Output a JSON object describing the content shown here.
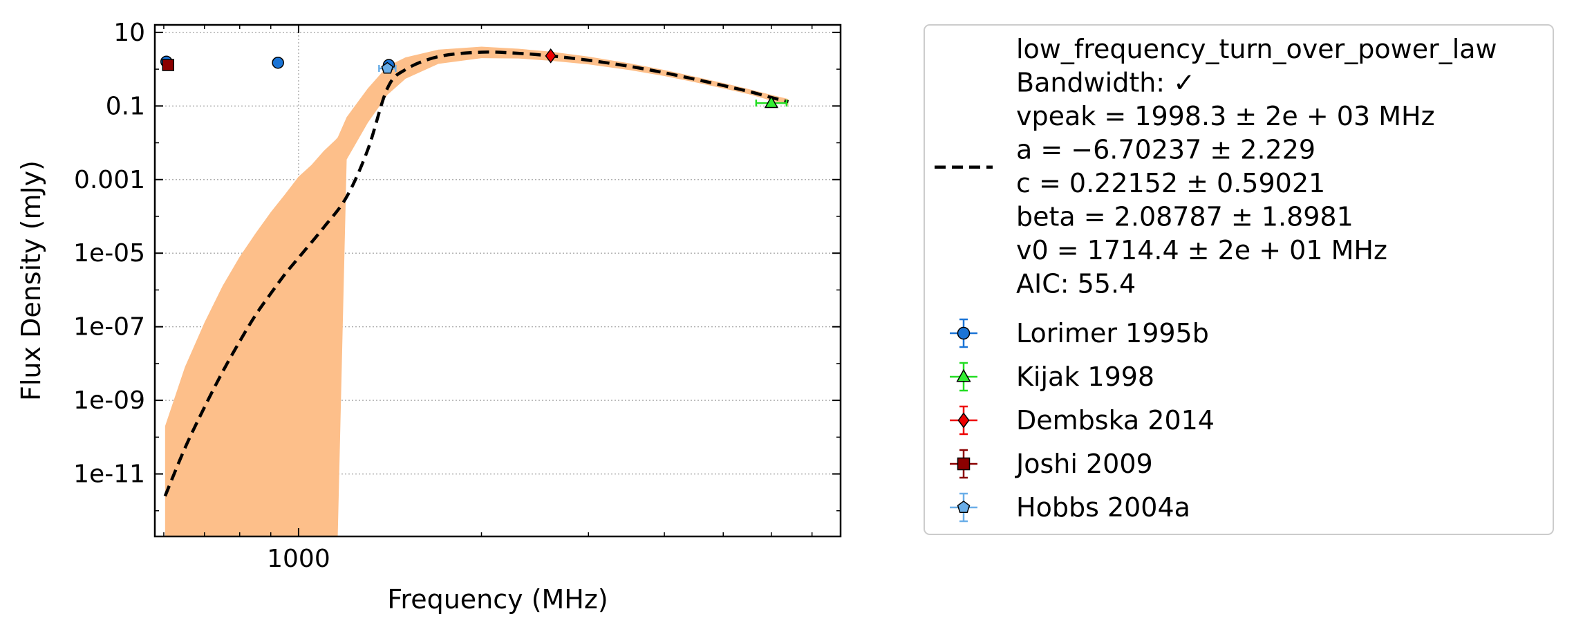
{
  "chart_data": {
    "type": "scatter",
    "xlabel": "Frequency (MHz)",
    "ylabel": "Flux Density (mJy)",
    "x_scale": "log",
    "y_scale": "log",
    "xlim": [
      580,
      7800
    ],
    "ylim": [
      2e-13,
      16
    ],
    "x_ticks": [
      {
        "value": 1000,
        "label": "1000"
      }
    ],
    "y_ticks": [
      {
        "value": 10,
        "label": "10"
      },
      {
        "value": 0.1,
        "label": "0.1"
      },
      {
        "value": 0.001,
        "label": "0.001"
      },
      {
        "value": 1e-05,
        "label": "1e-05"
      },
      {
        "value": 1e-07,
        "label": "1e-07"
      },
      {
        "value": 1e-09,
        "label": "1e-09"
      },
      {
        "value": 1e-11,
        "label": "1e-11"
      }
    ],
    "grid": true,
    "legend_position": "outside-right",
    "fit": {
      "model": "low_frequency_turn_over_power_law",
      "x": [
        603,
        650,
        700,
        750,
        800,
        850,
        900,
        950,
        1000,
        1100,
        1200,
        1300,
        1400,
        1500,
        1700,
        2000,
        2300,
        2600,
        3000,
        3500,
        4000,
        4500,
        5000,
        5500,
        6000,
        6400
      ],
      "y": [
        2.5e-12,
        5e-11,
        6.5e-10,
        6e-09,
        4e-08,
        2.1e-07,
        8e-07,
        2.7e-06,
        7.5e-06,
        5e-05,
        0.00034,
        0.0065,
        0.3,
        0.98,
        2.2,
        2.9,
        2.7,
        2.3,
        1.75,
        1.2,
        0.8,
        0.53,
        0.36,
        0.25,
        0.17,
        0.13
      ],
      "band_x": [
        603,
        650,
        700,
        750,
        800,
        850,
        900,
        950,
        1000,
        1050,
        1100,
        1150,
        1160,
        1200,
        1300,
        1400,
        1500,
        1700,
        2000,
        2300,
        2600,
        3000,
        3500,
        4000,
        4500,
        5000,
        5500,
        6000,
        6400
      ],
      "band_upper": [
        2e-10,
        8e-09,
        1.3e-07,
        1.3e-06,
        8e-06,
        3.5e-05,
        0.00013,
        0.0004,
        0.0012,
        0.0025,
        0.006,
        0.012,
        0.014,
        0.05,
        0.3,
        1.2,
        2.1,
        3.4,
        4.1,
        3.6,
        3.0,
        2.2,
        1.45,
        0.95,
        0.62,
        0.42,
        0.29,
        0.2,
        0.155
      ],
      "band_lower": [
        2e-13,
        2e-13,
        2e-13,
        2e-13,
        2e-13,
        2e-13,
        2e-13,
        2e-13,
        2e-13,
        2e-13,
        2e-13,
        2e-13,
        2e-13,
        0.0035,
        0.035,
        0.2,
        0.55,
        1.4,
        2.0,
        1.95,
        1.7,
        1.35,
        0.95,
        0.65,
        0.44,
        0.3,
        0.21,
        0.14,
        0.105
      ],
      "color": "#000000",
      "band_color": "#fdbf8a"
    },
    "series": [
      {
        "name": "Lorimer 1995b",
        "marker": "circle",
        "color": "#1a74d6",
        "error_color": "#1a74d6",
        "points": [
          {
            "x": 606,
            "y": 1.6
          },
          {
            "x": 925,
            "y": 1.5
          },
          {
            "x": 1408,
            "y": 1.3
          }
        ]
      },
      {
        "name": "Kijak 1998",
        "marker": "triangle",
        "color": "#33ee33",
        "error_color": "#22dd22",
        "points": [
          {
            "x": 6000,
            "y": 0.12
          }
        ]
      },
      {
        "name": "Dembska 2014",
        "marker": "diamond",
        "color": "#ee0000",
        "error_color": "#ee0000",
        "points": [
          {
            "x": 2600,
            "y": 2.3
          }
        ]
      },
      {
        "name": "Joshi 2009",
        "marker": "square",
        "color": "#8b0000",
        "error_color": "#8b0000",
        "points": [
          {
            "x": 610,
            "y": 1.3
          }
        ]
      },
      {
        "name": "Hobbs 2004a",
        "marker": "pentagon",
        "color": "#6aaee8",
        "error_color": "#6aaee8",
        "points": [
          {
            "x": 1400,
            "y": 1.05
          }
        ]
      }
    ],
    "legend": {
      "fit_lines": [
        "low_frequency_turn_over_power_law",
        "Bandwidth: ✓",
        "vpeak = 1998.3 ± 2e + 03 MHz",
        "a = −6.70237 ± 2.229",
        "c = 0.22152 ± 0.59021",
        "beta = 2.08787 ± 1.8981",
        "v0 = 1714.4 ± 2e + 01 MHz",
        "AIC: 55.4"
      ],
      "entries": [
        "Lorimer 1995b",
        "Kijak 1998",
        "Dembska 2014",
        "Joshi 2009",
        "Hobbs 2004a"
      ]
    }
  }
}
